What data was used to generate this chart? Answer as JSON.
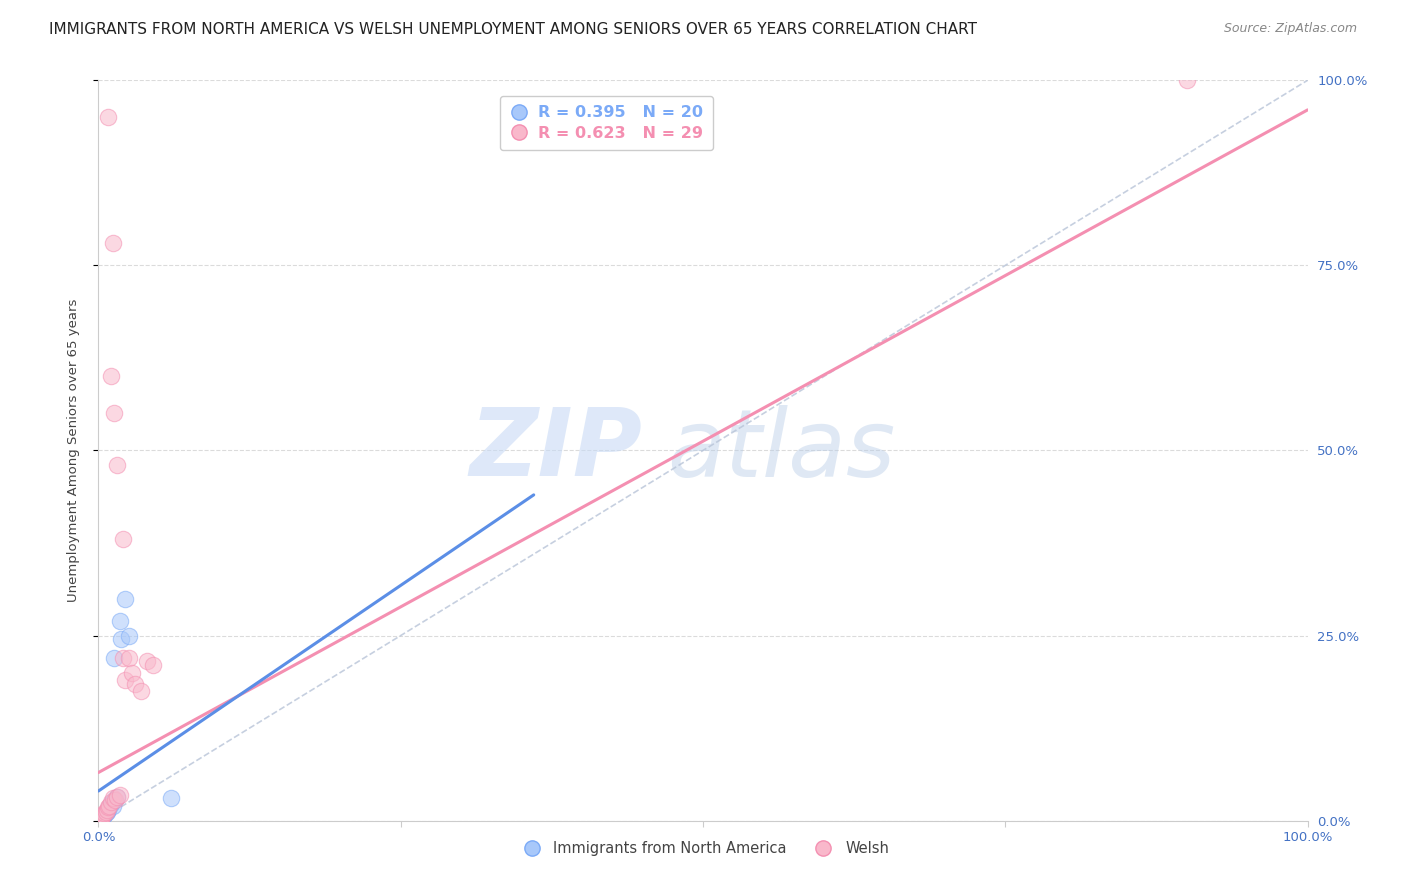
{
  "title": "IMMIGRANTS FROM NORTH AMERICA VS WELSH UNEMPLOYMENT AMONG SENIORS OVER 65 YEARS CORRELATION CHART",
  "source": "Source: ZipAtlas.com",
  "ylabel": "Unemployment Among Seniors over 65 years",
  "xlim": [
    0,
    1
  ],
  "ylim": [
    0,
    1
  ],
  "ytick_labels": [
    "0.0%",
    "25.0%",
    "50.0%",
    "75.0%",
    "100.0%"
  ],
  "ytick_values": [
    0.0,
    0.25,
    0.5,
    0.75,
    1.0
  ],
  "legend_labels_bottom": [
    "Immigrants from North America",
    "Welsh"
  ],
  "blue_color": "#7baaf7",
  "pink_color": "#f48fb1",
  "blue_dot_color": "#a8c8fa",
  "pink_dot_color": "#f9b8cb",
  "watermark_zip": "ZIP",
  "watermark_atlas": "atlas",
  "blue_points": [
    [
      0.001,
      0.002
    ],
    [
      0.002,
      0.004
    ],
    [
      0.003,
      0.006
    ],
    [
      0.004,
      0.005
    ],
    [
      0.005,
      0.008
    ],
    [
      0.006,
      0.01
    ],
    [
      0.007,
      0.012
    ],
    [
      0.008,
      0.015
    ],
    [
      0.009,
      0.018
    ],
    [
      0.01,
      0.022
    ],
    [
      0.011,
      0.025
    ],
    [
      0.012,
      0.02
    ],
    [
      0.013,
      0.028
    ],
    [
      0.015,
      0.032
    ],
    [
      0.018,
      0.27
    ],
    [
      0.019,
      0.245
    ],
    [
      0.022,
      0.3
    ],
    [
      0.025,
      0.25
    ],
    [
      0.06,
      0.03
    ],
    [
      0.013,
      0.22
    ]
  ],
  "pink_points": [
    [
      0.001,
      0.002
    ],
    [
      0.002,
      0.003
    ],
    [
      0.003,
      0.005
    ],
    [
      0.004,
      0.008
    ],
    [
      0.005,
      0.01
    ],
    [
      0.006,
      0.012
    ],
    [
      0.007,
      0.015
    ],
    [
      0.008,
      0.018
    ],
    [
      0.009,
      0.02
    ],
    [
      0.01,
      0.025
    ],
    [
      0.012,
      0.03
    ],
    [
      0.014,
      0.028
    ],
    [
      0.015,
      0.032
    ],
    [
      0.018,
      0.035
    ],
    [
      0.02,
      0.22
    ],
    [
      0.022,
      0.19
    ],
    [
      0.025,
      0.22
    ],
    [
      0.028,
      0.2
    ],
    [
      0.03,
      0.185
    ],
    [
      0.035,
      0.175
    ],
    [
      0.04,
      0.215
    ],
    [
      0.045,
      0.21
    ],
    [
      0.01,
      0.6
    ],
    [
      0.012,
      0.78
    ],
    [
      0.013,
      0.55
    ],
    [
      0.015,
      0.48
    ],
    [
      0.02,
      0.38
    ],
    [
      0.9,
      1.0
    ],
    [
      0.008,
      0.95
    ]
  ],
  "blue_line": {
    "x0": 0.0,
    "y0": 0.04,
    "x1": 0.36,
    "y1": 0.44
  },
  "pink_line": {
    "x0": 0.0,
    "y0": 0.065,
    "x1": 1.0,
    "y1": 0.96
  },
  "dashed_line": {
    "x0": 0.0,
    "y0": 0.0,
    "x1": 1.0,
    "y1": 1.0
  },
  "title_fontsize": 11,
  "source_fontsize": 9,
  "grid_color": "#cccccc",
  "background_color": "#ffffff",
  "axis_label_color": "#4472c4",
  "tick_label_color": "#4472c4"
}
